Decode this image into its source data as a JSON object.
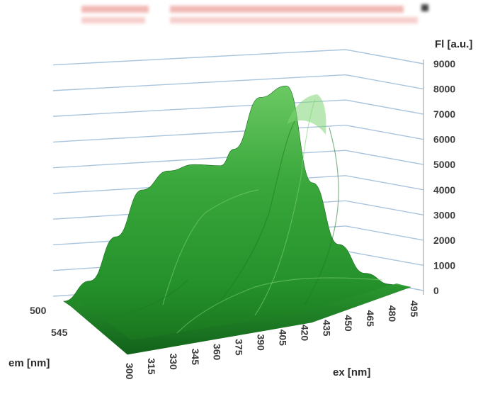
{
  "chart_data": {
    "type": "surface3d",
    "title": "",
    "z_axis": {
      "label": "Fl [a.u.]",
      "ticks": [
        0,
        1000,
        2000,
        3000,
        4000,
        5000,
        6000,
        7000,
        8000,
        9000
      ],
      "range": [
        0,
        9000
      ]
    },
    "ex_axis": {
      "label": "ex [nm]",
      "ticks": [
        "300",
        "315",
        "330",
        "345",
        "360",
        "375",
        "390",
        "405",
        "420",
        "435",
        "450",
        "465",
        "480",
        "495"
      ]
    },
    "em_axis": {
      "label": "em [nm]",
      "ticks": [
        "500",
        "545"
      ]
    },
    "profile": {
      "ex": [
        300,
        315,
        330,
        345,
        360,
        375,
        390,
        405,
        420,
        435,
        450,
        465,
        480,
        495
      ],
      "fl": [
        150,
        900,
        2600,
        4400,
        5100,
        5300,
        5200,
        5800,
        7800,
        8200,
        4300,
        1800,
        600,
        100
      ]
    },
    "colors": {
      "surface_dark": "#1d7a22",
      "surface_mid": "#2fa035",
      "surface_light": "#62c25a",
      "grid": "#a9c4dc"
    }
  }
}
